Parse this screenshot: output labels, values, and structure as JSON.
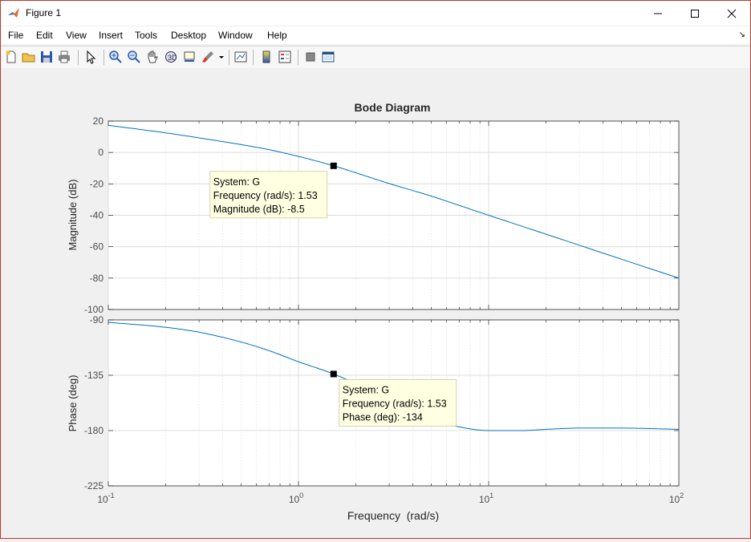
{
  "window": {
    "title": "Figure 1"
  },
  "menu": [
    "File",
    "Edit",
    "View",
    "Insert",
    "Tools",
    "Desktop",
    "Window",
    "Help"
  ],
  "toolbar": [
    "new-figure-icon",
    "open-file-icon",
    "save-icon",
    "print-icon",
    "pointer-icon",
    "zoom-in-icon",
    "zoom-out-icon",
    "pan-hand-icon",
    "rotate-3d-icon",
    "data-cursor-icon",
    "brush-icon",
    "link-plot-icon",
    "colorbar-icon",
    "legend-icon",
    "hide-plot-tools-icon",
    "show-plot-tools-icon"
  ],
  "chart_data": {
    "type": "line",
    "title": "Bode Diagram",
    "xlabel": "Frequency  (rad/s)",
    "xscale": "log",
    "xlim": [
      0.1,
      100
    ],
    "x_tick_base": "10",
    "x_tick_exponents": [
      "-1",
      "0",
      "1",
      "2"
    ],
    "series_color": "#0072bd",
    "grid": true,
    "magnitude": {
      "ylabel": "Magnitude (dB)",
      "ylim": [
        -100,
        20
      ],
      "yticks": [
        "20",
        "0",
        "-20",
        "-40",
        "-60",
        "-80",
        "-100"
      ],
      "x": [
        0.1,
        0.2,
        0.3,
        0.5,
        0.7,
        1,
        1.53,
        2,
        3,
        5,
        7,
        10,
        20,
        50,
        100
      ],
      "y": [
        17.3,
        12.5,
        9.3,
        5.0,
        1.8,
        -2.5,
        -8.5,
        -12.9,
        -19.8,
        -27.8,
        -33.7,
        -40.0,
        -52,
        -68,
        -80
      ]
    },
    "phase": {
      "ylabel": "Phase (deg)",
      "ylim": [
        -225,
        -90
      ],
      "yticks": [
        "-90",
        "-135",
        "-180",
        "-225"
      ],
      "x": [
        0.1,
        0.2,
        0.3,
        0.5,
        0.7,
        1,
        1.53,
        2,
        3,
        5,
        7,
        10,
        15,
        20,
        30,
        50,
        100
      ],
      "y": [
        -92,
        -96,
        -100,
        -108,
        -115,
        -124,
        -134,
        -142,
        -156,
        -171,
        -177,
        -180,
        -180,
        -179,
        -178,
        -178,
        -179
      ]
    },
    "datatips": [
      {
        "panel": "magnitude",
        "x": 1.53,
        "y": -8.5,
        "lines": [
          "System: G",
          "Frequency (rad/s): 1.53",
          "Magnitude (dB): -8.5"
        ]
      },
      {
        "panel": "phase",
        "x": 1.53,
        "y": -134,
        "lines": [
          "System: G",
          "Frequency (rad/s): 1.53",
          "Phase (deg): -134"
        ]
      }
    ]
  }
}
